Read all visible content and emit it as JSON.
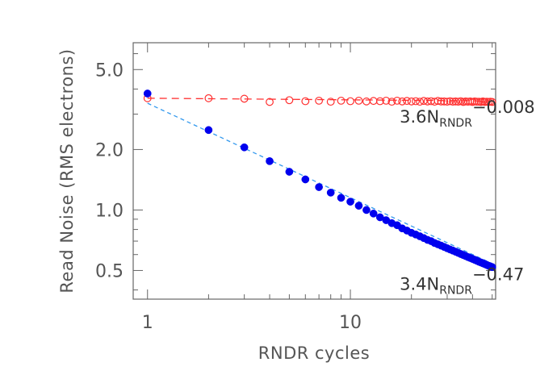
{
  "chart_data": {
    "type": "scatter",
    "title": "",
    "xlabel": "RNDR cycles",
    "ylabel": "Read Noise (RMS electrons)",
    "xscale": "log",
    "yscale": "log",
    "xlim": [
      0.85,
      52
    ],
    "ylim": [
      0.36,
      6.8
    ],
    "xticks": [
      1,
      10
    ],
    "xtick_labels": [
      "1",
      "10"
    ],
    "yticks": [
      0.5,
      1.0,
      2.0,
      5.0
    ],
    "ytick_labels": [
      "0.5",
      "1.0",
      "2.0",
      "5.0"
    ],
    "grid": false,
    "legend": "none",
    "series": [
      {
        "marker": "open-circle",
        "color": "#ff3030",
        "x": [
          1,
          2,
          3,
          4,
          5,
          6,
          7,
          8,
          9,
          10,
          11,
          12,
          13,
          14,
          15,
          16,
          17,
          18,
          19,
          20,
          21,
          22,
          23,
          24,
          25,
          26,
          27,
          28,
          29,
          30,
          31,
          32,
          33,
          34,
          35,
          36,
          37,
          38,
          39,
          40,
          41,
          42,
          43,
          44,
          45,
          46,
          47,
          48,
          49,
          50
        ],
        "values": [
          3.6,
          3.6,
          3.58,
          3.45,
          3.52,
          3.48,
          3.5,
          3.46,
          3.5,
          3.48,
          3.5,
          3.47,
          3.49,
          3.48,
          3.5,
          3.46,
          3.5,
          3.47,
          3.49,
          3.47,
          3.48,
          3.46,
          3.49,
          3.47,
          3.48,
          3.46,
          3.49,
          3.47,
          3.47,
          3.46,
          3.48,
          3.46,
          3.47,
          3.46,
          3.48,
          3.45,
          3.47,
          3.46,
          3.47,
          3.45,
          3.47,
          3.46,
          3.46,
          3.45,
          3.47,
          3.45,
          3.46,
          3.45,
          3.46,
          3.45
        ]
      },
      {
        "marker": "filled-circle",
        "color": "#0000ee",
        "x": [
          1,
          2,
          3,
          4,
          5,
          6,
          7,
          8,
          9,
          10,
          11,
          12,
          13,
          14,
          15,
          16,
          17,
          18,
          19,
          20,
          21,
          22,
          23,
          24,
          25,
          26,
          27,
          28,
          29,
          30,
          31,
          32,
          33,
          34,
          35,
          36,
          37,
          38,
          39,
          40,
          41,
          42,
          43,
          44,
          45,
          46,
          47,
          48,
          49,
          50
        ],
        "values": [
          3.8,
          2.5,
          2.05,
          1.75,
          1.55,
          1.42,
          1.3,
          1.22,
          1.15,
          1.1,
          1.05,
          1.0,
          0.96,
          0.92,
          0.89,
          0.86,
          0.84,
          0.81,
          0.79,
          0.77,
          0.755,
          0.74,
          0.725,
          0.71,
          0.7,
          0.685,
          0.675,
          0.665,
          0.655,
          0.645,
          0.636,
          0.628,
          0.62,
          0.612,
          0.604,
          0.597,
          0.59,
          0.583,
          0.577,
          0.571,
          0.565,
          0.559,
          0.553,
          0.548,
          0.543,
          0.538,
          0.533,
          0.528,
          0.524,
          0.52
        ]
      }
    ],
    "fits": [
      {
        "coef": 3.6,
        "exponent": -0.008,
        "color": "#ff3030",
        "style": "long-dash"
      },
      {
        "coef": 3.4,
        "exponent": -0.47,
        "color": "#3399ee",
        "style": "dash"
      }
    ],
    "annotations": [
      {
        "base": "3.6N",
        "sub": "RNDR",
        "sup": "−0.008",
        "at_x": 17.5,
        "at_y": 2.72
      },
      {
        "base": "3.4N",
        "sub": "RNDR",
        "sup": "−0.47",
        "at_x": 17.5,
        "at_y": 0.4
      }
    ]
  }
}
